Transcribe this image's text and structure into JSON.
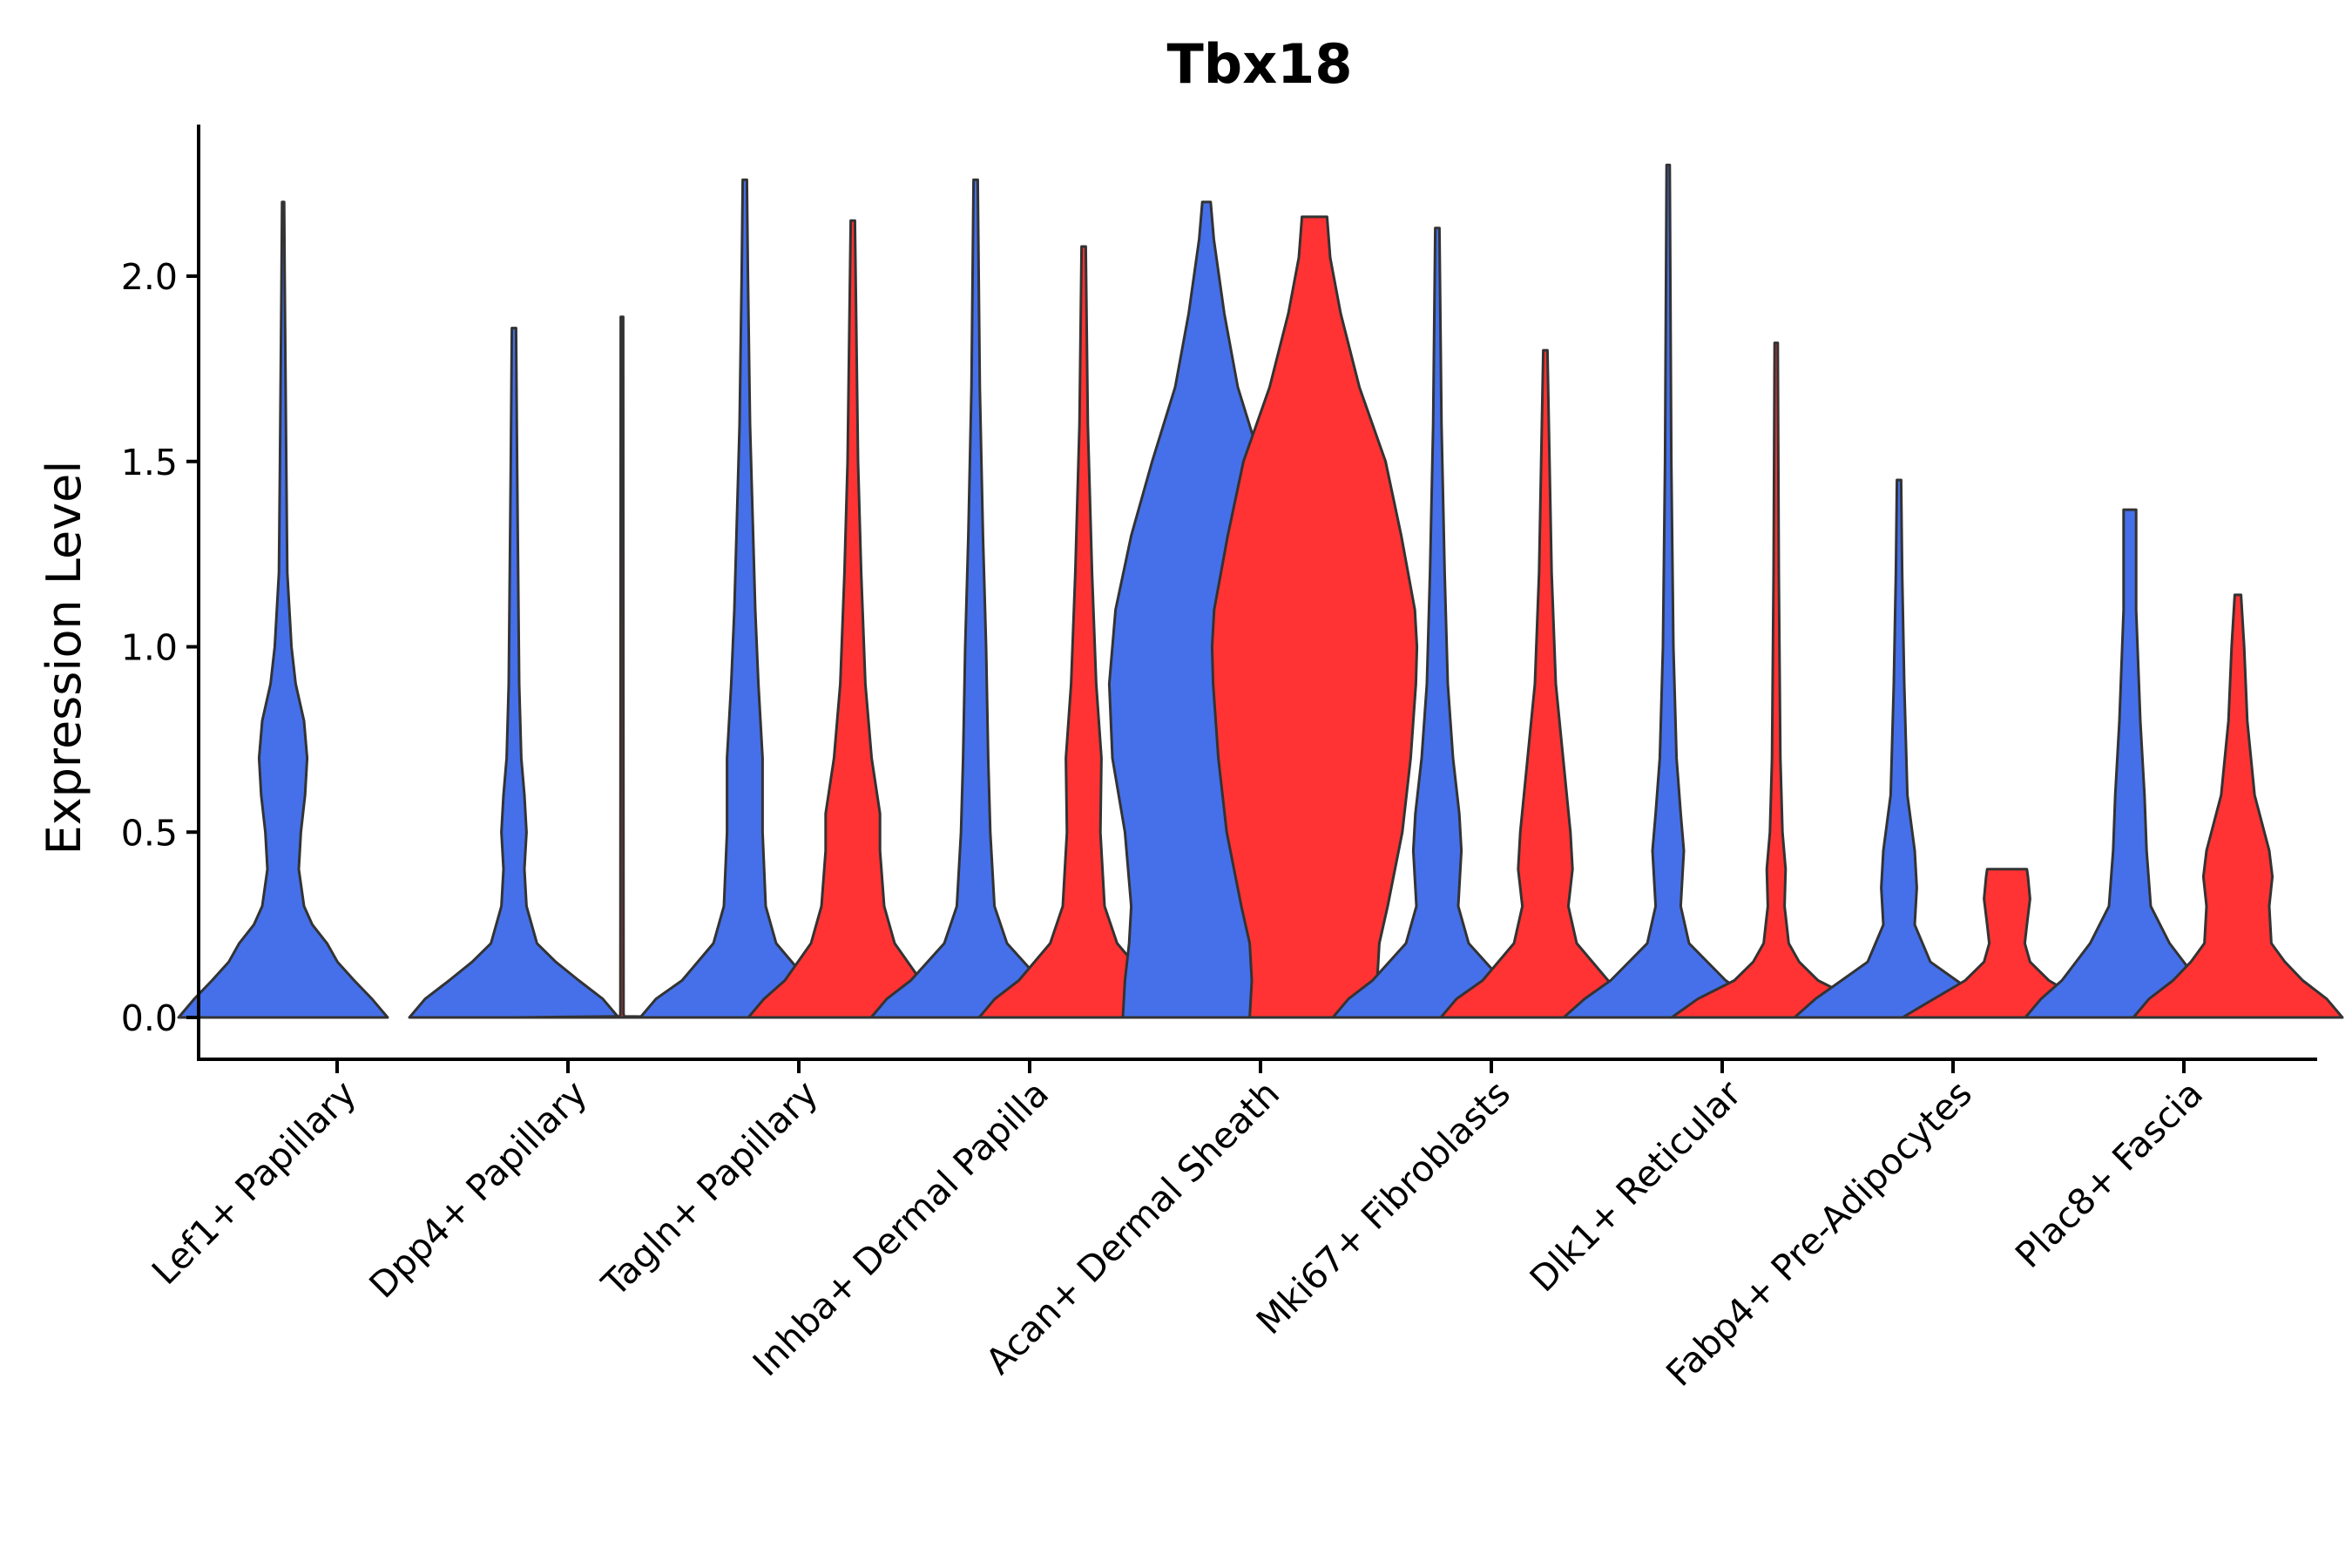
{
  "chart_data": {
    "type": "violin",
    "title": "Tbx18",
    "xlabel": "",
    "ylabel": "Expression Level",
    "ylim": [
      -0.12,
      2.4
    ],
    "yticks": [
      "0.0",
      "0.5",
      "1.0",
      "1.5",
      "2.0"
    ],
    "ytick_values": [
      0,
      0.5,
      1.0,
      1.5,
      2.0
    ],
    "grid": false,
    "legend": "none",
    "categories": [
      "Lef1+ Papillary",
      "Dpp4+ Papillary",
      "Tagln+ Papillary",
      "Inhba+ Dermal Papilla",
      "Acan+ Dermal Sheath",
      "Mki67+ Fibroblasts",
      "Dlk1+ Reticular",
      "Fabp4+ Pre-Adipocytes",
      "Plac8+ Fascia"
    ],
    "colors": {
      "group_a": "#4570EA",
      "group_b": "#FF3333",
      "outline": "#333333"
    },
    "violins": [
      {
        "category": "Lef1+ Papillary",
        "color": "#4570EA",
        "max": 2.2,
        "profile": [
          [
            0,
            1
          ],
          [
            0.05,
            0.85
          ],
          [
            0.1,
            0.68
          ],
          [
            0.15,
            0.52
          ],
          [
            0.2,
            0.42
          ],
          [
            0.25,
            0.28
          ],
          [
            0.3,
            0.2
          ],
          [
            0.4,
            0.15
          ],
          [
            0.5,
            0.17
          ],
          [
            0.6,
            0.21
          ],
          [
            0.7,
            0.23
          ],
          [
            0.8,
            0.2
          ],
          [
            0.9,
            0.12
          ],
          [
            1.0,
            0.08
          ],
          [
            1.2,
            0.04
          ],
          [
            1.5,
            0.03
          ],
          [
            2.0,
            0.015
          ],
          [
            2.2,
            0.01
          ]
        ]
      },
      {
        "category": "Dpp4+ Papillary",
        "color": "#4570EA",
        "max": 1.86,
        "profile": [
          [
            0,
            1
          ],
          [
            0.05,
            0.85
          ],
          [
            0.1,
            0.62
          ],
          [
            0.15,
            0.4
          ],
          [
            0.2,
            0.22
          ],
          [
            0.3,
            0.12
          ],
          [
            0.4,
            0.1
          ],
          [
            0.5,
            0.12
          ],
          [
            0.6,
            0.1
          ],
          [
            0.7,
            0.07
          ],
          [
            0.9,
            0.05
          ],
          [
            1.2,
            0.04
          ],
          [
            1.5,
            0.03
          ],
          [
            1.86,
            0.02
          ]
        ]
      },
      {
        "category": "Dpp4+ Papillary",
        "color": "#FF3333",
        "max": 1.89,
        "profile": [
          [
            0,
            1
          ],
          [
            0.003,
            0.02
          ],
          [
            0.01,
            0.015
          ],
          [
            1.89,
            0.012
          ]
        ]
      },
      {
        "category": "Tagln+ Papillary",
        "color": "#4570EA",
        "max": 2.26,
        "profile": [
          [
            0,
            1
          ],
          [
            0.05,
            0.85
          ],
          [
            0.1,
            0.6
          ],
          [
            0.2,
            0.3
          ],
          [
            0.3,
            0.2
          ],
          [
            0.5,
            0.17
          ],
          [
            0.7,
            0.17
          ],
          [
            0.9,
            0.13
          ],
          [
            1.1,
            0.1
          ],
          [
            1.3,
            0.08
          ],
          [
            1.6,
            0.05
          ],
          [
            2.0,
            0.03
          ],
          [
            2.26,
            0.02
          ]
        ]
      },
      {
        "category": "Tagln+ Papillary",
        "color": "#FF3333",
        "max": 2.15,
        "profile": [
          [
            0,
            1
          ],
          [
            0.05,
            0.85
          ],
          [
            0.1,
            0.65
          ],
          [
            0.2,
            0.4
          ],
          [
            0.3,
            0.3
          ],
          [
            0.45,
            0.26
          ],
          [
            0.55,
            0.26
          ],
          [
            0.7,
            0.18
          ],
          [
            0.9,
            0.12
          ],
          [
            1.2,
            0.08
          ],
          [
            1.5,
            0.05
          ],
          [
            2.15,
            0.02
          ]
        ]
      },
      {
        "category": "Inhba+ Dermal Papilla",
        "color": "#4570EA",
        "max": 2.26,
        "profile": [
          [
            0,
            1
          ],
          [
            0.05,
            0.85
          ],
          [
            0.1,
            0.62
          ],
          [
            0.2,
            0.3
          ],
          [
            0.3,
            0.18
          ],
          [
            0.5,
            0.14
          ],
          [
            0.7,
            0.12
          ],
          [
            1.0,
            0.1
          ],
          [
            1.3,
            0.07
          ],
          [
            1.7,
            0.04
          ],
          [
            2.26,
            0.02
          ]
        ]
      },
      {
        "category": "Inhba+ Dermal Papilla",
        "color": "#FF3333",
        "max": 2.08,
        "profile": [
          [
            0,
            1
          ],
          [
            0.05,
            0.85
          ],
          [
            0.1,
            0.62
          ],
          [
            0.2,
            0.32
          ],
          [
            0.3,
            0.2
          ],
          [
            0.5,
            0.16
          ],
          [
            0.7,
            0.17
          ],
          [
            0.9,
            0.12
          ],
          [
            1.2,
            0.08
          ],
          [
            1.6,
            0.04
          ],
          [
            2.08,
            0.02
          ]
        ]
      },
      {
        "category": "Acan+ Dermal Sheath",
        "color": "#4570EA",
        "max": 2.2,
        "profile": [
          [
            0,
            0.8
          ],
          [
            0.1,
            0.78
          ],
          [
            0.2,
            0.74
          ],
          [
            0.3,
            0.72
          ],
          [
            0.5,
            0.78
          ],
          [
            0.7,
            0.9
          ],
          [
            0.9,
            0.93
          ],
          [
            1.1,
            0.87
          ],
          [
            1.3,
            0.72
          ],
          [
            1.5,
            0.52
          ],
          [
            1.7,
            0.3
          ],
          [
            1.9,
            0.17
          ],
          [
            2.1,
            0.07
          ],
          [
            2.2,
            0.04
          ]
        ]
      },
      {
        "category": "Acan+ Dermal Sheath",
        "color": "#FF3333",
        "max": 2.16,
        "profile": [
          [
            0,
            0.62
          ],
          [
            0.1,
            0.6
          ],
          [
            0.2,
            0.62
          ],
          [
            0.3,
            0.7
          ],
          [
            0.5,
            0.84
          ],
          [
            0.7,
            0.92
          ],
          [
            0.9,
            0.97
          ],
          [
            1.0,
            0.98
          ],
          [
            1.1,
            0.96
          ],
          [
            1.3,
            0.83
          ],
          [
            1.5,
            0.68
          ],
          [
            1.7,
            0.43
          ],
          [
            1.9,
            0.25
          ],
          [
            2.05,
            0.15
          ],
          [
            2.16,
            0.12
          ]
        ]
      },
      {
        "category": "Mki67+ Fibroblasts",
        "color": "#4570EA",
        "max": 2.13,
        "profile": [
          [
            0,
            1
          ],
          [
            0.05,
            0.85
          ],
          [
            0.1,
            0.62
          ],
          [
            0.2,
            0.3
          ],
          [
            0.3,
            0.2
          ],
          [
            0.45,
            0.23
          ],
          [
            0.55,
            0.21
          ],
          [
            0.7,
            0.15
          ],
          [
            0.9,
            0.1
          ],
          [
            1.2,
            0.07
          ],
          [
            1.6,
            0.04
          ],
          [
            2.13,
            0.02
          ]
        ]
      },
      {
        "category": "Mki67+ Fibroblasts",
        "color": "#FF3333",
        "max": 1.8,
        "profile": [
          [
            0,
            1
          ],
          [
            0.05,
            0.85
          ],
          [
            0.1,
            0.6
          ],
          [
            0.2,
            0.3
          ],
          [
            0.3,
            0.22
          ],
          [
            0.4,
            0.26
          ],
          [
            0.5,
            0.24
          ],
          [
            0.7,
            0.17
          ],
          [
            0.9,
            0.1
          ],
          [
            1.2,
            0.06
          ],
          [
            1.8,
            0.02
          ]
        ]
      },
      {
        "category": "Dlk1+ Reticular",
        "color": "#4570EA",
        "max": 2.3,
        "profile": [
          [
            0,
            1
          ],
          [
            0.05,
            0.8
          ],
          [
            0.1,
            0.55
          ],
          [
            0.2,
            0.2
          ],
          [
            0.3,
            0.12
          ],
          [
            0.45,
            0.15
          ],
          [
            0.55,
            0.12
          ],
          [
            0.7,
            0.08
          ],
          [
            1.0,
            0.05
          ],
          [
            1.5,
            0.03
          ],
          [
            2.3,
            0.015
          ]
        ]
      },
      {
        "category": "Dlk1+ Reticular",
        "color": "#FF3333",
        "max": 1.82,
        "profile": [
          [
            0,
            1
          ],
          [
            0.05,
            0.75
          ],
          [
            0.1,
            0.4
          ],
          [
            0.15,
            0.22
          ],
          [
            0.2,
            0.12
          ],
          [
            0.3,
            0.08
          ],
          [
            0.4,
            0.09
          ],
          [
            0.5,
            0.06
          ],
          [
            0.7,
            0.04
          ],
          [
            1.2,
            0.025
          ],
          [
            1.82,
            0.015
          ]
        ]
      },
      {
        "category": "Fabp4+ Pre-Adipocytes",
        "color": "#4570EA",
        "max": 1.45,
        "profile": [
          [
            0,
            1
          ],
          [
            0.05,
            0.8
          ],
          [
            0.1,
            0.55
          ],
          [
            0.15,
            0.3
          ],
          [
            0.25,
            0.15
          ],
          [
            0.35,
            0.17
          ],
          [
            0.45,
            0.15
          ],
          [
            0.6,
            0.08
          ],
          [
            0.9,
            0.05
          ],
          [
            1.2,
            0.03
          ],
          [
            1.45,
            0.02
          ]
        ]
      },
      {
        "category": "Fabp4+ Pre-Adipocytes",
        "color": "#FF3333",
        "max": 0.4,
        "profile": [
          [
            0,
            1
          ],
          [
            0.05,
            0.7
          ],
          [
            0.1,
            0.4
          ],
          [
            0.15,
            0.22
          ],
          [
            0.2,
            0.17
          ],
          [
            0.25,
            0.19
          ],
          [
            0.32,
            0.22
          ],
          [
            0.38,
            0.2
          ],
          [
            0.4,
            0.19
          ]
        ]
      },
      {
        "category": "Plac8+ Fascia",
        "color": "#4570EA",
        "max": 1.37,
        "profile": [
          [
            0,
            1
          ],
          [
            0.05,
            0.85
          ],
          [
            0.1,
            0.65
          ],
          [
            0.2,
            0.38
          ],
          [
            0.3,
            0.2
          ],
          [
            0.45,
            0.16
          ],
          [
            0.6,
            0.14
          ],
          [
            0.8,
            0.1
          ],
          [
            1.1,
            0.06
          ],
          [
            1.37,
            0.06
          ]
        ]
      },
      {
        "category": "Plac8+ Fascia",
        "color": "#FF3333",
        "max": 1.14,
        "profile": [
          [
            0,
            1
          ],
          [
            0.05,
            0.85
          ],
          [
            0.1,
            0.62
          ],
          [
            0.15,
            0.45
          ],
          [
            0.2,
            0.32
          ],
          [
            0.3,
            0.3
          ],
          [
            0.38,
            0.33
          ],
          [
            0.45,
            0.3
          ],
          [
            0.6,
            0.16
          ],
          [
            0.8,
            0.09
          ],
          [
            1.0,
            0.06
          ],
          [
            1.14,
            0.03
          ]
        ]
      }
    ]
  }
}
